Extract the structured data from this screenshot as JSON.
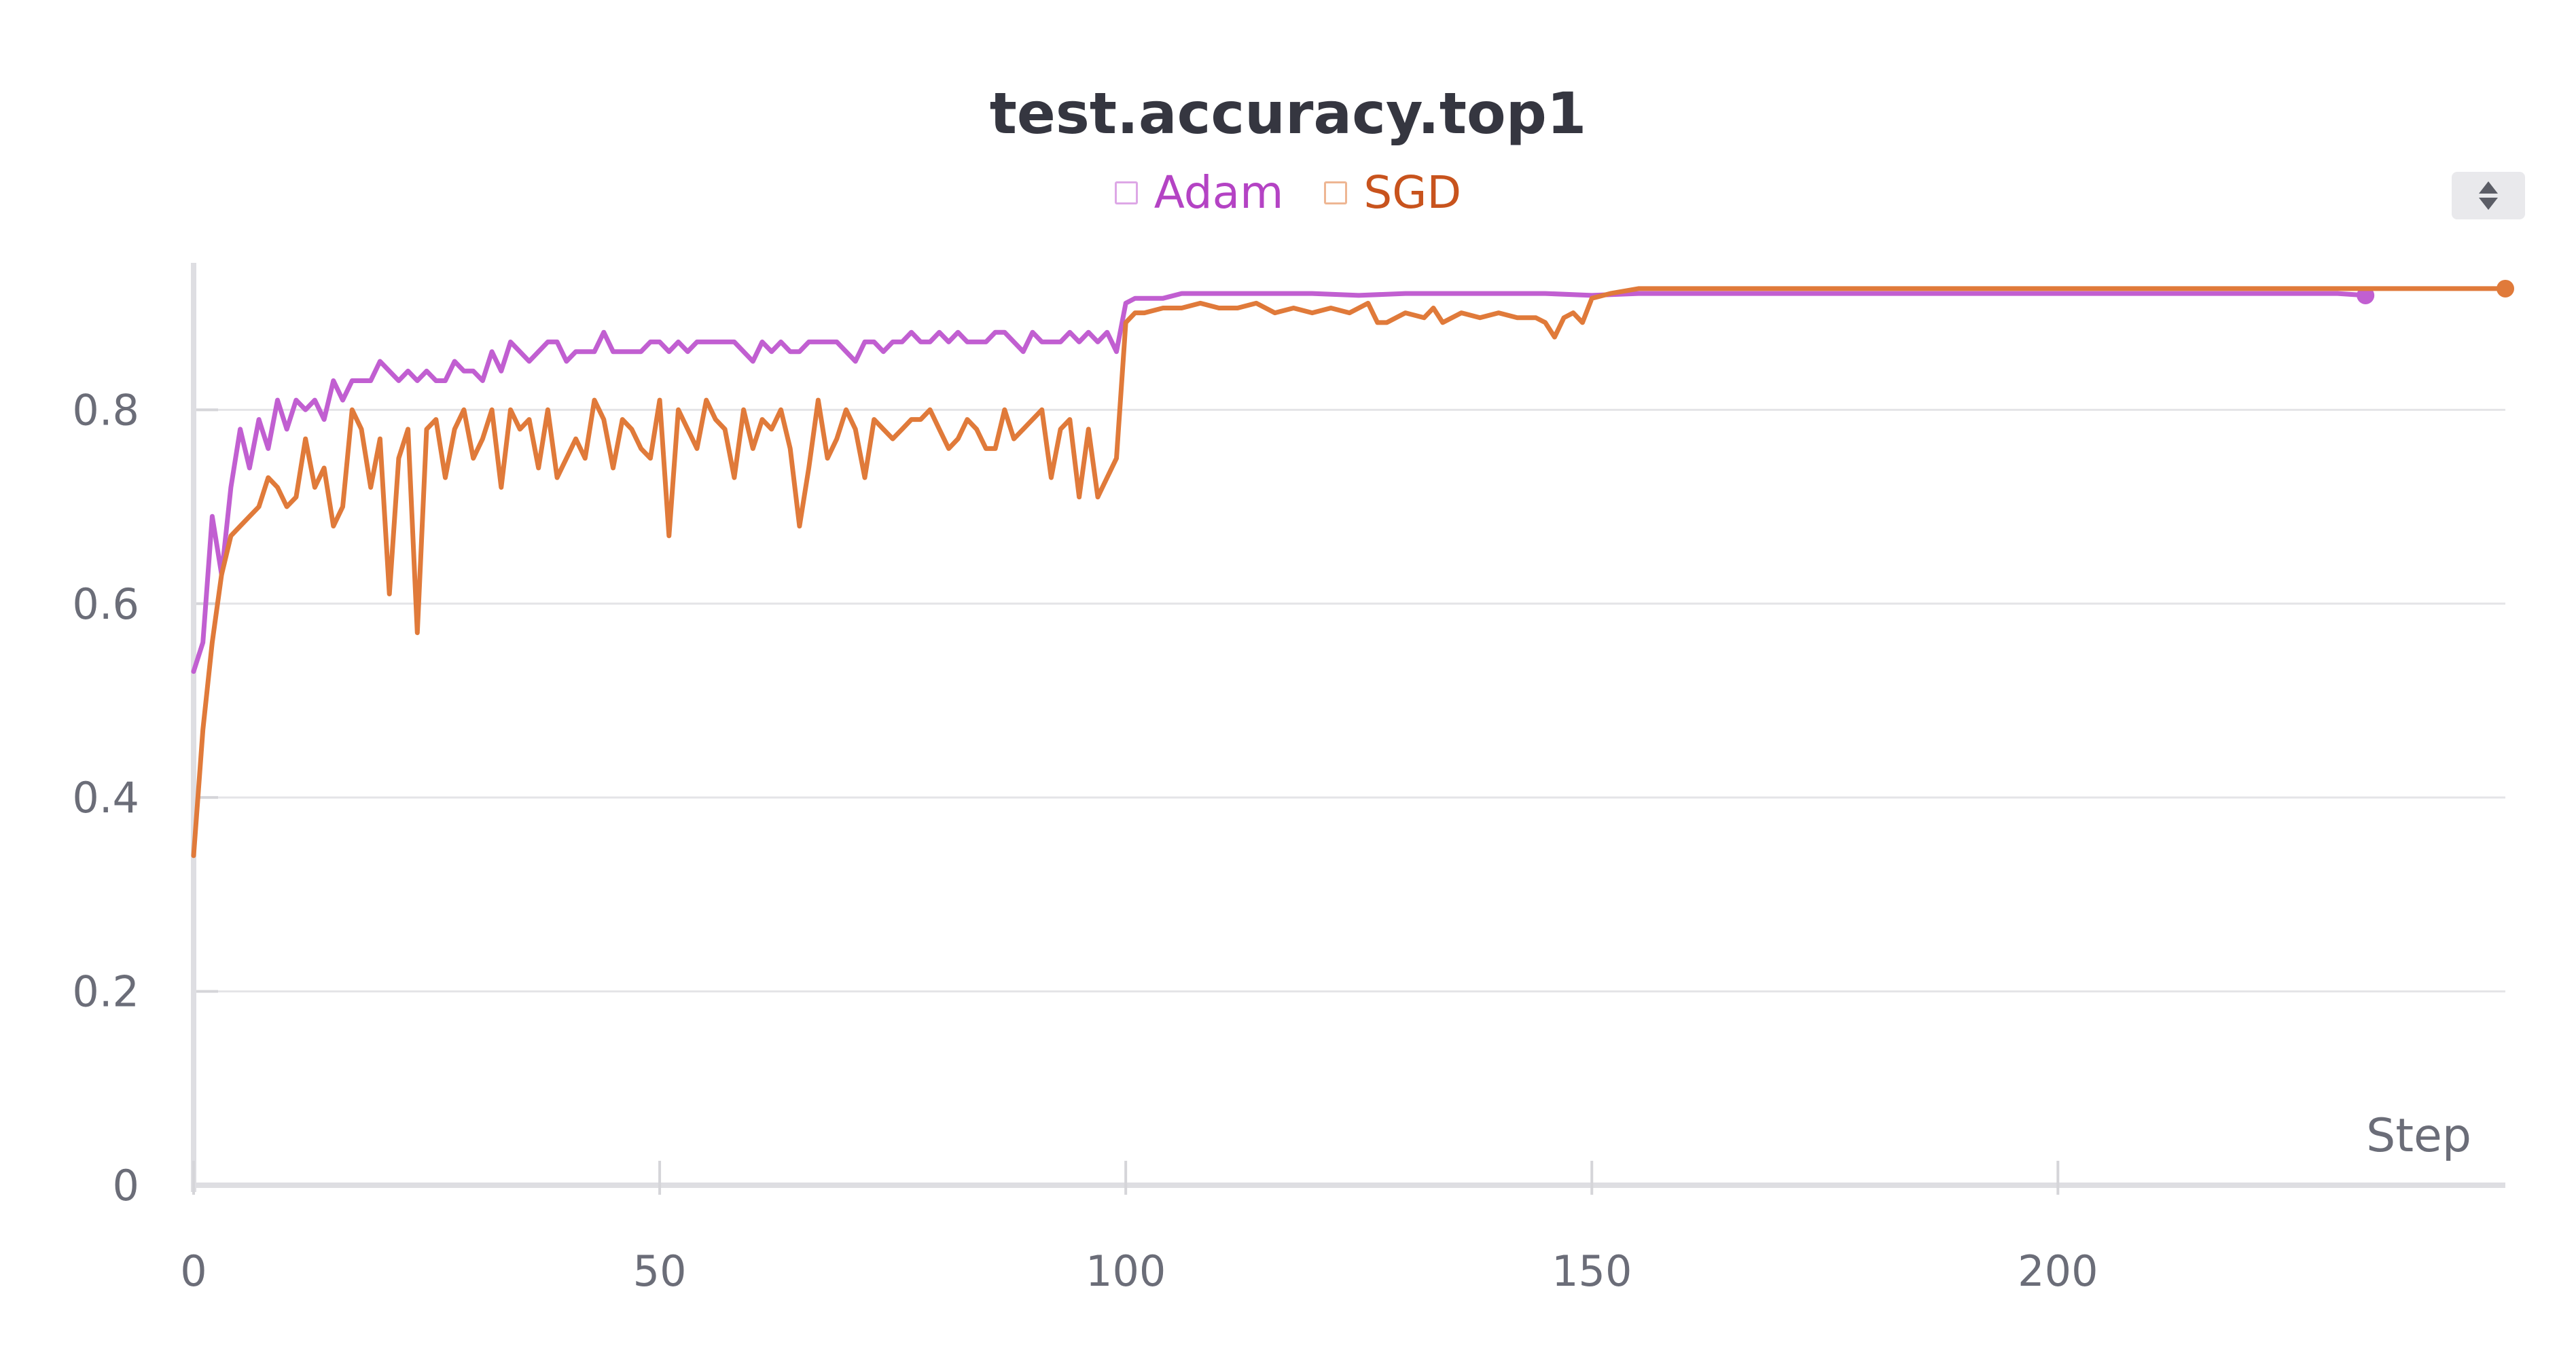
{
  "chart_data": {
    "type": "line",
    "title": "test.accuracy.top1",
    "xlabel": "Step",
    "ylabel": "",
    "xlim": [
      0,
      248
    ],
    "ylim": [
      0,
      0.96
    ],
    "grid": true,
    "legend_position": "top-center",
    "x_ticks": [
      "0",
      "50",
      "100",
      "150",
      "200"
    ],
    "y_ticks": [
      "0",
      "0.2",
      "0.4",
      "0.6",
      "0.8"
    ],
    "series": [
      {
        "name": "Adam",
        "color": "#c15fd1",
        "points": [
          [
            0,
            0.53
          ],
          [
            1,
            0.56
          ],
          [
            2,
            0.69
          ],
          [
            3,
            0.63
          ],
          [
            4,
            0.72
          ],
          [
            5,
            0.78
          ],
          [
            6,
            0.74
          ],
          [
            7,
            0.79
          ],
          [
            8,
            0.76
          ],
          [
            9,
            0.81
          ],
          [
            10,
            0.78
          ],
          [
            11,
            0.81
          ],
          [
            12,
            0.8
          ],
          [
            13,
            0.81
          ],
          [
            14,
            0.79
          ],
          [
            15,
            0.83
          ],
          [
            16,
            0.81
          ],
          [
            17,
            0.83
          ],
          [
            18,
            0.83
          ],
          [
            19,
            0.83
          ],
          [
            20,
            0.85
          ],
          [
            21,
            0.84
          ],
          [
            22,
            0.83
          ],
          [
            23,
            0.84
          ],
          [
            24,
            0.83
          ],
          [
            25,
            0.84
          ],
          [
            26,
            0.83
          ],
          [
            27,
            0.83
          ],
          [
            28,
            0.85
          ],
          [
            29,
            0.84
          ],
          [
            30,
            0.84
          ],
          [
            31,
            0.83
          ],
          [
            32,
            0.86
          ],
          [
            33,
            0.84
          ],
          [
            34,
            0.87
          ],
          [
            35,
            0.86
          ],
          [
            36,
            0.85
          ],
          [
            37,
            0.86
          ],
          [
            38,
            0.87
          ],
          [
            39,
            0.87
          ],
          [
            40,
            0.85
          ],
          [
            41,
            0.86
          ],
          [
            42,
            0.86
          ],
          [
            43,
            0.86
          ],
          [
            44,
            0.88
          ],
          [
            45,
            0.86
          ],
          [
            46,
            0.86
          ],
          [
            47,
            0.86
          ],
          [
            48,
            0.86
          ],
          [
            49,
            0.87
          ],
          [
            50,
            0.87
          ],
          [
            51,
            0.86
          ],
          [
            52,
            0.87
          ],
          [
            53,
            0.86
          ],
          [
            54,
            0.87
          ],
          [
            55,
            0.87
          ],
          [
            56,
            0.87
          ],
          [
            57,
            0.87
          ],
          [
            58,
            0.87
          ],
          [
            59,
            0.86
          ],
          [
            60,
            0.85
          ],
          [
            61,
            0.87
          ],
          [
            62,
            0.86
          ],
          [
            63,
            0.87
          ],
          [
            64,
            0.86
          ],
          [
            65,
            0.86
          ],
          [
            66,
            0.87
          ],
          [
            67,
            0.87
          ],
          [
            68,
            0.87
          ],
          [
            69,
            0.87
          ],
          [
            70,
            0.86
          ],
          [
            71,
            0.85
          ],
          [
            72,
            0.87
          ],
          [
            73,
            0.87
          ],
          [
            74,
            0.86
          ],
          [
            75,
            0.87
          ],
          [
            76,
            0.87
          ],
          [
            77,
            0.88
          ],
          [
            78,
            0.87
          ],
          [
            79,
            0.87
          ],
          [
            80,
            0.88
          ],
          [
            81,
            0.87
          ],
          [
            82,
            0.88
          ],
          [
            83,
            0.87
          ],
          [
            84,
            0.87
          ],
          [
            85,
            0.87
          ],
          [
            86,
            0.88
          ],
          [
            87,
            0.88
          ],
          [
            88,
            0.87
          ],
          [
            89,
            0.86
          ],
          [
            90,
            0.88
          ],
          [
            91,
            0.87
          ],
          [
            92,
            0.87
          ],
          [
            93,
            0.87
          ],
          [
            94,
            0.88
          ],
          [
            95,
            0.87
          ],
          [
            96,
            0.88
          ],
          [
            97,
            0.87
          ],
          [
            98,
            0.88
          ],
          [
            99,
            0.86
          ],
          [
            100,
            0.91
          ],
          [
            101,
            0.915
          ],
          [
            102,
            0.915
          ],
          [
            104,
            0.915
          ],
          [
            106,
            0.92
          ],
          [
            110,
            0.92
          ],
          [
            115,
            0.92
          ],
          [
            120,
            0.92
          ],
          [
            125,
            0.918
          ],
          [
            130,
            0.92
          ],
          [
            135,
            0.92
          ],
          [
            140,
            0.92
          ],
          [
            145,
            0.92
          ],
          [
            150,
            0.918
          ],
          [
            155,
            0.92
          ],
          [
            160,
            0.92
          ],
          [
            165,
            0.92
          ],
          [
            170,
            0.92
          ],
          [
            175,
            0.92
          ],
          [
            180,
            0.92
          ],
          [
            185,
            0.92
          ],
          [
            190,
            0.92
          ],
          [
            195,
            0.92
          ],
          [
            200,
            0.92
          ],
          [
            205,
            0.92
          ],
          [
            210,
            0.92
          ],
          [
            215,
            0.92
          ],
          [
            220,
            0.92
          ],
          [
            225,
            0.92
          ],
          [
            230,
            0.92
          ],
          [
            233,
            0.918
          ]
        ]
      },
      {
        "name": "SGD",
        "color": "#e07a3a",
        "points": [
          [
            0,
            0.34
          ],
          [
            1,
            0.47
          ],
          [
            2,
            0.56
          ],
          [
            3,
            0.63
          ],
          [
            4,
            0.67
          ],
          [
            5,
            0.68
          ],
          [
            6,
            0.69
          ],
          [
            7,
            0.7
          ],
          [
            8,
            0.73
          ],
          [
            9,
            0.72
          ],
          [
            10,
            0.7
          ],
          [
            11,
            0.71
          ],
          [
            12,
            0.77
          ],
          [
            13,
            0.72
          ],
          [
            14,
            0.74
          ],
          [
            15,
            0.68
          ],
          [
            16,
            0.7
          ],
          [
            17,
            0.8
          ],
          [
            18,
            0.78
          ],
          [
            19,
            0.72
          ],
          [
            20,
            0.77
          ],
          [
            21,
            0.61
          ],
          [
            22,
            0.75
          ],
          [
            23,
            0.78
          ],
          [
            24,
            0.57
          ],
          [
            25,
            0.78
          ],
          [
            26,
            0.79
          ],
          [
            27,
            0.73
          ],
          [
            28,
            0.78
          ],
          [
            29,
            0.8
          ],
          [
            30,
            0.75
          ],
          [
            31,
            0.77
          ],
          [
            32,
            0.8
          ],
          [
            33,
            0.72
          ],
          [
            34,
            0.8
          ],
          [
            35,
            0.78
          ],
          [
            36,
            0.79
          ],
          [
            37,
            0.74
          ],
          [
            38,
            0.8
          ],
          [
            39,
            0.73
          ],
          [
            40,
            0.75
          ],
          [
            41,
            0.77
          ],
          [
            42,
            0.75
          ],
          [
            43,
            0.81
          ],
          [
            44,
            0.79
          ],
          [
            45,
            0.74
          ],
          [
            46,
            0.79
          ],
          [
            47,
            0.78
          ],
          [
            48,
            0.76
          ],
          [
            49,
            0.75
          ],
          [
            50,
            0.81
          ],
          [
            51,
            0.67
          ],
          [
            52,
            0.8
          ],
          [
            53,
            0.78
          ],
          [
            54,
            0.76
          ],
          [
            55,
            0.81
          ],
          [
            56,
            0.79
          ],
          [
            57,
            0.78
          ],
          [
            58,
            0.73
          ],
          [
            59,
            0.8
          ],
          [
            60,
            0.76
          ],
          [
            61,
            0.79
          ],
          [
            62,
            0.78
          ],
          [
            63,
            0.8
          ],
          [
            64,
            0.76
          ],
          [
            65,
            0.68
          ],
          [
            66,
            0.74
          ],
          [
            67,
            0.81
          ],
          [
            68,
            0.75
          ],
          [
            69,
            0.77
          ],
          [
            70,
            0.8
          ],
          [
            71,
            0.78
          ],
          [
            72,
            0.73
          ],
          [
            73,
            0.79
          ],
          [
            74,
            0.78
          ],
          [
            75,
            0.77
          ],
          [
            76,
            0.78
          ],
          [
            77,
            0.79
          ],
          [
            78,
            0.79
          ],
          [
            79,
            0.8
          ],
          [
            80,
            0.78
          ],
          [
            81,
            0.76
          ],
          [
            82,
            0.77
          ],
          [
            83,
            0.79
          ],
          [
            84,
            0.78
          ],
          [
            85,
            0.76
          ],
          [
            86,
            0.76
          ],
          [
            87,
            0.8
          ],
          [
            88,
            0.77
          ],
          [
            89,
            0.78
          ],
          [
            90,
            0.79
          ],
          [
            91,
            0.8
          ],
          [
            92,
            0.73
          ],
          [
            93,
            0.78
          ],
          [
            94,
            0.79
          ],
          [
            95,
            0.71
          ],
          [
            96,
            0.78
          ],
          [
            97,
            0.71
          ],
          [
            98,
            0.73
          ],
          [
            99,
            0.75
          ],
          [
            100,
            0.89
          ],
          [
            101,
            0.9
          ],
          [
            102,
            0.9
          ],
          [
            104,
            0.905
          ],
          [
            106,
            0.905
          ],
          [
            108,
            0.91
          ],
          [
            110,
            0.905
          ],
          [
            112,
            0.905
          ],
          [
            114,
            0.91
          ],
          [
            116,
            0.9
          ],
          [
            118,
            0.905
          ],
          [
            120,
            0.9
          ],
          [
            122,
            0.905
          ],
          [
            124,
            0.9
          ],
          [
            126,
            0.91
          ],
          [
            127,
            0.89
          ],
          [
            128,
            0.89
          ],
          [
            130,
            0.9
          ],
          [
            132,
            0.895
          ],
          [
            133,
            0.905
          ],
          [
            134,
            0.89
          ],
          [
            136,
            0.9
          ],
          [
            138,
            0.895
          ],
          [
            140,
            0.9
          ],
          [
            142,
            0.895
          ],
          [
            144,
            0.895
          ],
          [
            145,
            0.89
          ],
          [
            146,
            0.875
          ],
          [
            147,
            0.895
          ],
          [
            148,
            0.9
          ],
          [
            149,
            0.89
          ],
          [
            150,
            0.915
          ],
          [
            152,
            0.92
          ],
          [
            155,
            0.925
          ],
          [
            160,
            0.925
          ],
          [
            165,
            0.925
          ],
          [
            170,
            0.925
          ],
          [
            175,
            0.925
          ],
          [
            180,
            0.925
          ],
          [
            185,
            0.925
          ],
          [
            190,
            0.925
          ],
          [
            195,
            0.925
          ],
          [
            200,
            0.925
          ],
          [
            205,
            0.925
          ],
          [
            210,
            0.925
          ],
          [
            215,
            0.925
          ],
          [
            220,
            0.925
          ],
          [
            225,
            0.925
          ],
          [
            230,
            0.925
          ],
          [
            235,
            0.925
          ],
          [
            240,
            0.925
          ],
          [
            245,
            0.925
          ],
          [
            248,
            0.925
          ]
        ]
      }
    ]
  },
  "legend_icon": "square-outline",
  "scroll_icon": "up-down-arrows-icon"
}
